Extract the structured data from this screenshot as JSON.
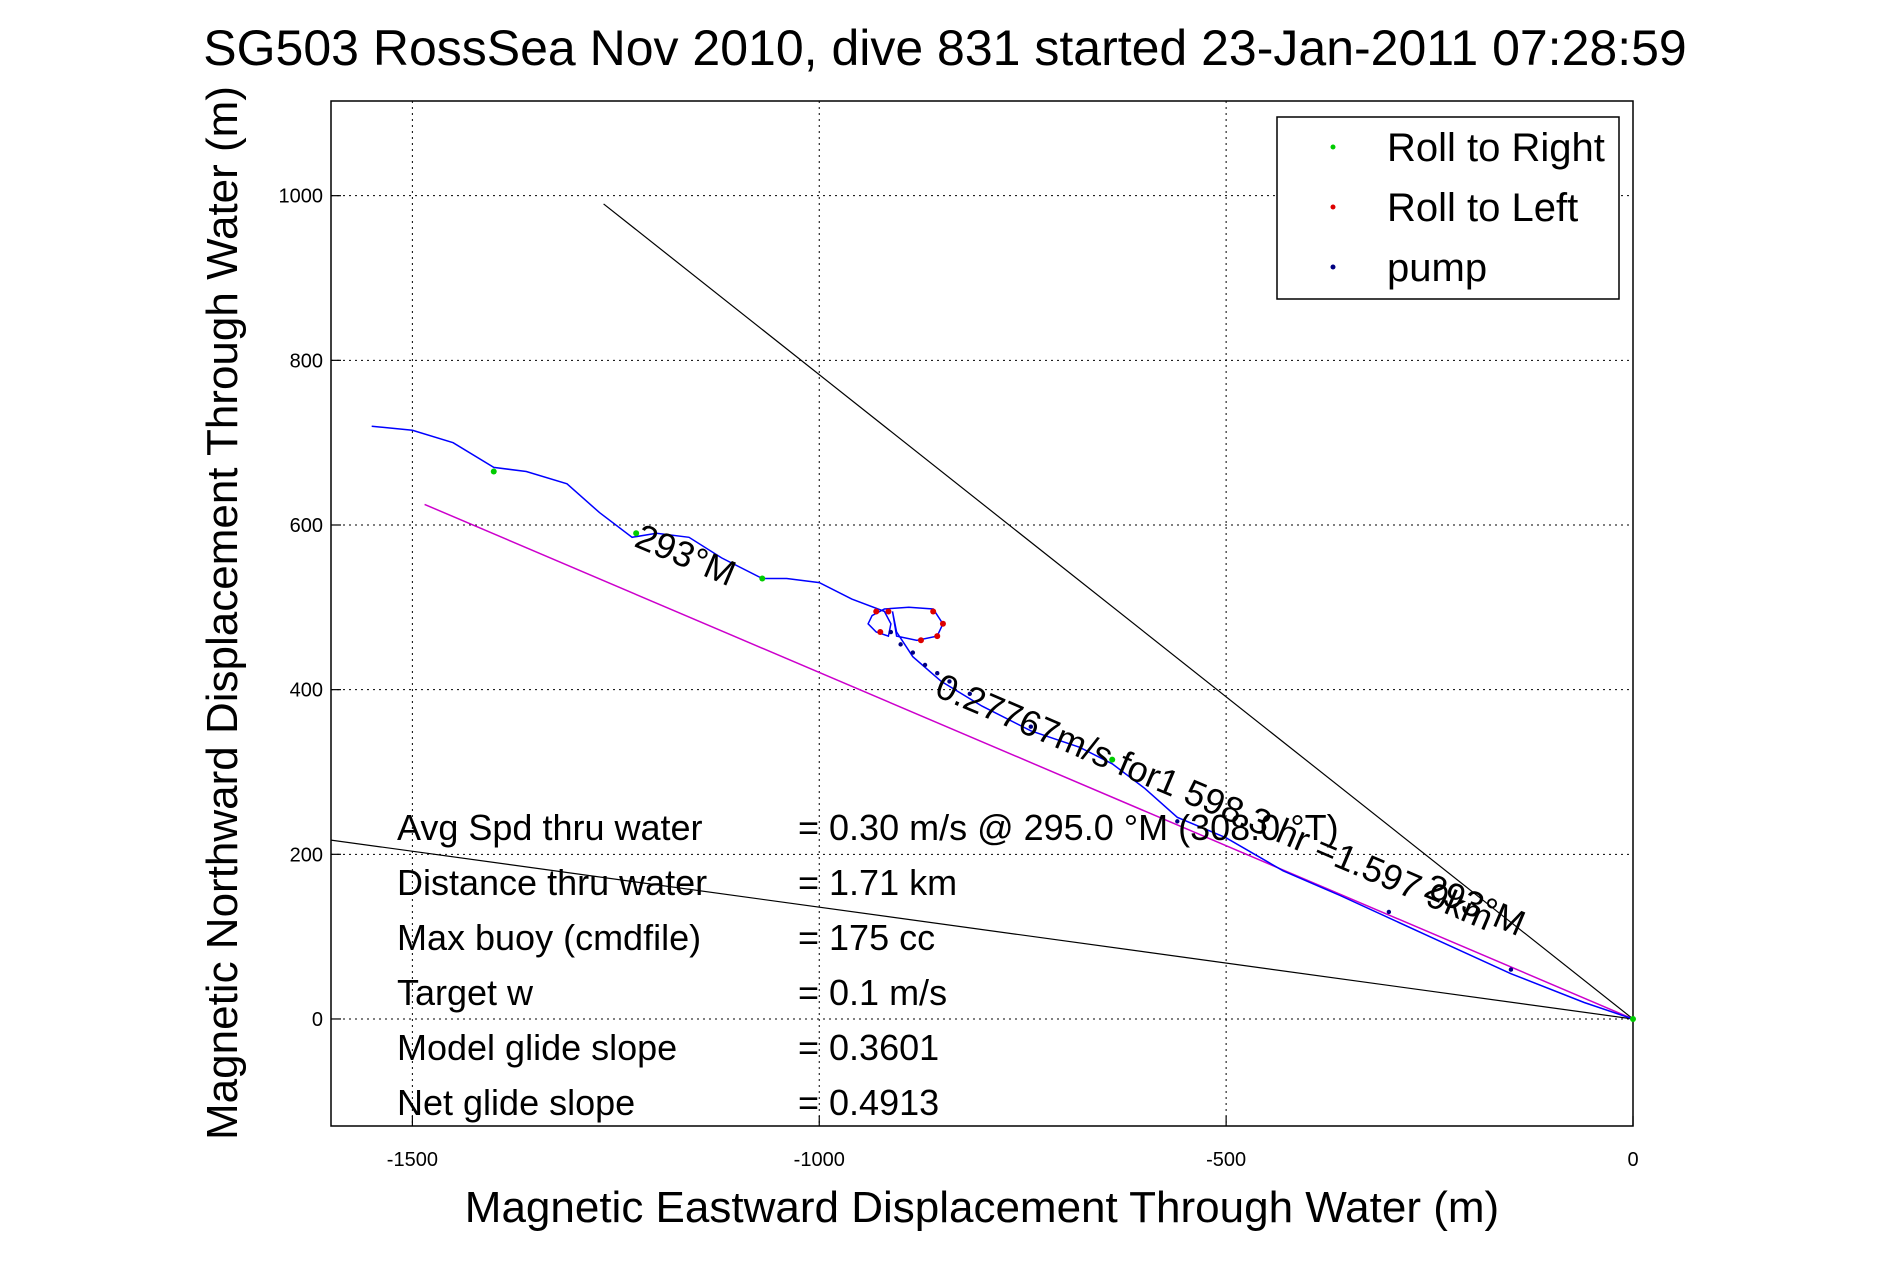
{
  "chart_data": {
    "type": "line",
    "title": "SG503 RossSea Nov 2010, dive 831 started 23-Jan-2011 07:28:59",
    "xlabel": "Magnetic Eastward Displacement Through Water (m)",
    "ylabel": "Magnetic Northward Displacement Through Water (m)",
    "xlim": [
      -1600,
      0
    ],
    "ylim": [
      -130,
      1115
    ],
    "xticks": [
      -1500,
      -1000,
      -500,
      0
    ],
    "yticks": [
      0,
      200,
      400,
      600,
      800,
      1000
    ],
    "xtick_labels": [
      "-1500",
      "-1000",
      "-500",
      "0"
    ],
    "ytick_labels": [
      "0",
      "200",
      "400",
      "600",
      "800",
      "1000"
    ],
    "grid": true,
    "legend_position": "top-right",
    "legend": [
      {
        "label": "Roll to Right",
        "color": "#00cc00"
      },
      {
        "label": "Roll to Left",
        "color": "#dd0000"
      },
      {
        "label": "pump",
        "color": "#000080"
      }
    ],
    "track": {
      "name": "track",
      "color": "#0000ff",
      "points": [
        [
          0,
          0
        ],
        [
          -60,
          20
        ],
        [
          -150,
          55
        ],
        [
          -250,
          100
        ],
        [
          -360,
          150
        ],
        [
          -430,
          180
        ],
        [
          -500,
          220
        ],
        [
          -560,
          245
        ],
        [
          -600,
          280
        ],
        [
          -640,
          310
        ],
        [
          -680,
          330
        ],
        [
          -740,
          350
        ],
        [
          -800,
          380
        ],
        [
          -850,
          410
        ],
        [
          -885,
          440
        ],
        [
          -905,
          470
        ],
        [
          -910,
          495
        ],
        [
          -905,
          465
        ],
        [
          -880,
          460
        ],
        [
          -855,
          465
        ],
        [
          -848,
          480
        ],
        [
          -860,
          498
        ],
        [
          -890,
          500
        ],
        [
          -920,
          498
        ],
        [
          -935,
          490
        ],
        [
          -940,
          480
        ],
        [
          -930,
          470
        ],
        [
          -915,
          465
        ],
        [
          -912,
          480
        ],
        [
          -920,
          495
        ],
        [
          -960,
          510
        ],
        [
          -1000,
          530
        ],
        [
          -1040,
          535
        ],
        [
          -1070,
          535
        ],
        [
          -1120,
          560
        ],
        [
          -1160,
          585
        ],
        [
          -1200,
          590
        ],
        [
          -1230,
          585
        ],
        [
          -1270,
          615
        ],
        [
          -1310,
          650
        ],
        [
          -1360,
          665
        ],
        [
          -1400,
          670
        ],
        [
          -1450,
          700
        ],
        [
          -1500,
          715
        ],
        [
          -1550,
          720
        ]
      ]
    },
    "roll_right_points": [
      [
        -1400,
        665
      ],
      [
        -1225,
        590
      ],
      [
        -1070,
        535
      ],
      [
        -640,
        315
      ],
      [
        0,
        0
      ]
    ],
    "roll_left_points": [
      [
        -930,
        495
      ],
      [
        -925,
        470
      ],
      [
        -915,
        495
      ],
      [
        -860,
        495
      ],
      [
        -848,
        480
      ],
      [
        -855,
        465
      ],
      [
        -875,
        460
      ]
    ],
    "pump_points": [
      [
        -912,
        470
      ],
      [
        -900,
        455
      ],
      [
        -885,
        445
      ],
      [
        -870,
        430
      ],
      [
        -855,
        420
      ],
      [
        -840,
        410
      ],
      [
        -815,
        395
      ],
      [
        -740,
        355
      ],
      [
        -560,
        240
      ],
      [
        -300,
        130
      ],
      [
        -150,
        60
      ]
    ],
    "magenta_line": {
      "color": "#cc00cc",
      "points": [
        [
          0,
          0
        ],
        [
          -1485,
          625
        ]
      ]
    },
    "heading_lines": [
      {
        "color": "#000000",
        "points": [
          [
            0,
            0
          ],
          [
            -1265,
            990
          ]
        ]
      },
      {
        "color": "#000000",
        "points": [
          [
            0,
            0
          ],
          [
            -1620,
            220
          ]
        ]
      }
    ],
    "rotated_labels": [
      {
        "text": "293°M",
        "at": [
          -1170,
          550
        ]
      },
      {
        "text": "0.27767m/s for1 598.3 hr =1.597 9km",
        "at": [
          -520,
          250
        ]
      },
      {
        "text": "293°M",
        "at": [
          -200,
          125
        ]
      }
    ],
    "stats": [
      {
        "label": "Avg Spd thru water",
        "value": "=  0.30 m/s @ 295.0 °M (308.0 °T)"
      },
      {
        "label": "Distance thru water",
        "value": "=  1.71 km"
      },
      {
        "label": "Max buoy (cmdfile)",
        "value": "= 175 cc"
      },
      {
        "label": "Target w",
        "value": "= 0.1 m/s"
      },
      {
        "label": "Model glide slope",
        "value": "= 0.3601"
      },
      {
        "label": "Net glide slope",
        "value": "= 0.4913"
      }
    ]
  }
}
